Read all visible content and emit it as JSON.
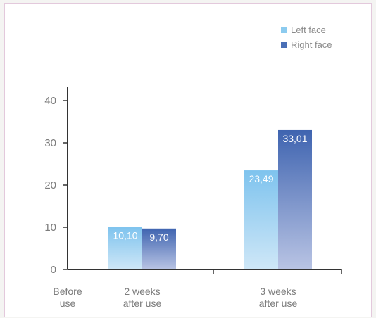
{
  "chart_data": {
    "type": "bar",
    "categories": [
      [
        "Before",
        "use"
      ],
      [
        "2 weeks",
        "after use"
      ],
      [
        "3 weeks",
        "after use"
      ]
    ],
    "series": [
      {
        "name": "Left face",
        "values": [
          null,
          10.1,
          23.49
        ],
        "labels": [
          "",
          "10,10",
          "23,49"
        ],
        "color": "#8ccbef"
      },
      {
        "name": "Right face",
        "values": [
          null,
          9.7,
          33.01
        ],
        "labels": [
          "",
          "9,70",
          "33,01"
        ],
        "color": "#4a6fb6"
      }
    ],
    "yticks": [
      "0",
      "10",
      "20",
      "30",
      "40"
    ],
    "ylim": [
      0,
      40
    ],
    "legend": "top-right",
    "grid": false,
    "title": "",
    "xlabel": "",
    "ylabel": ""
  }
}
